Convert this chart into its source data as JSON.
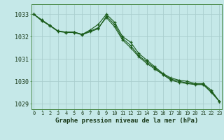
{
  "background_color": "#c5e8e8",
  "grid_color": "#aacece",
  "line_color": "#1a5c1a",
  "title": "Graphe pression niveau de la mer (hPa)",
  "ylabel_labels": [
    1029,
    1030,
    1031,
    1032,
    1033
  ],
  "x_hours": [
    0,
    1,
    2,
    3,
    4,
    5,
    6,
    7,
    8,
    9,
    10,
    11,
    12,
    13,
    14,
    15,
    16,
    17,
    18,
    19,
    20,
    21,
    22,
    23
  ],
  "series": [
    [
      1033.0,
      1032.7,
      1032.5,
      1032.25,
      1032.2,
      1032.2,
      1032.1,
      1032.3,
      1032.55,
      1033.0,
      1032.65,
      1032.0,
      1031.75,
      1031.25,
      1030.95,
      1030.65,
      1030.35,
      1030.15,
      1030.05,
      1030.0,
      1029.9,
      1029.9,
      1029.6,
      1029.1
    ],
    [
      1033.0,
      1032.75,
      1032.5,
      1032.25,
      1032.2,
      1032.2,
      1032.1,
      1032.25,
      1032.4,
      1032.85,
      1032.45,
      1031.85,
      1031.5,
      1031.1,
      1030.8,
      1030.55,
      1030.3,
      1030.05,
      1029.95,
      1029.9,
      1029.85,
      1029.85,
      1029.5,
      1029.1
    ],
    [
      1033.0,
      1032.72,
      1032.48,
      1032.23,
      1032.18,
      1032.18,
      1032.08,
      1032.22,
      1032.35,
      1032.92,
      1032.55,
      1031.92,
      1031.6,
      1031.15,
      1030.87,
      1030.6,
      1030.32,
      1030.1,
      1030.0,
      1029.93,
      1029.87,
      1029.87,
      1029.53,
      1029.1
    ]
  ],
  "ylim": [
    1028.75,
    1033.45
  ],
  "xlim": [
    -0.3,
    23.3
  ],
  "spine_color": "#4a8a4a",
  "tick_label_color": "#1a3a1a",
  "title_fontsize": 6.5,
  "ytick_fontsize": 6.0,
  "xtick_fontsize": 5.0
}
